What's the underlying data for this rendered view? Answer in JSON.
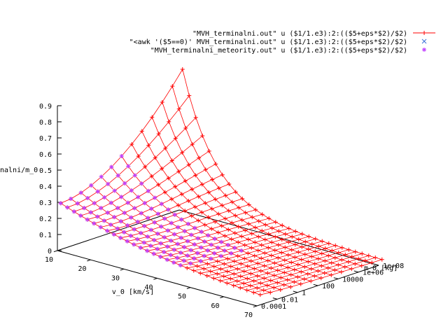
{
  "legend": [
    {
      "label": "\"MVH_terminalni.out\" u ($1/1.e3):2:(($5+eps*$2)/$2)",
      "color": "#ff0000",
      "marker": "plus"
    },
    {
      "label": "\"<awk '($5==0)' MVH_terminalni.out\" u ($1/1.e3):2:(($5+eps*$2)/$2)",
      "color": "#3a6fd8",
      "marker": "cross"
    },
    {
      "label": "\"MVH_terminalni_meteority.out\" u ($1/1.e3):2:(($5+eps*$2)/$2)",
      "color": "#c040ff",
      "marker": "star"
    }
  ],
  "chart_data": {
    "type": "surface",
    "title": "",
    "xlabel": "v_0 [km/s]",
    "ylabel": "m_0 [kg]",
    "zlabel": "nalni/m_0",
    "x_ticks": [
      "10",
      "20",
      "30",
      "40",
      "50",
      "60",
      "70"
    ],
    "y_ticks": [
      "0.0001",
      "0.01",
      "1",
      "100",
      "10000",
      "1e+06",
      "1e+08"
    ],
    "z_ticks": [
      "0",
      "0.1",
      "0.2",
      "0.3",
      "0.4",
      "0.5",
      "0.6",
      "0.7",
      "0.8",
      "0.9"
    ],
    "xlim": [
      10,
      70
    ],
    "ylim_log10": [
      -4,
      8
    ],
    "zlim": [
      0,
      0.9
    ],
    "series": [
      {
        "name": "\"MVH_terminalni.out\" u ($1/1.e3):2:(($5+eps*$2)/$2)",
        "x": [
          11,
          13,
          15,
          17,
          19,
          21,
          23,
          25,
          27,
          29,
          31,
          33,
          35,
          37,
          39,
          41,
          43,
          45,
          47,
          49,
          51,
          53,
          55,
          57,
          59,
          61,
          63,
          65,
          67,
          69,
          71
        ],
        "log10_m": [
          -4,
          -3,
          -2,
          -1,
          0,
          1,
          2,
          3,
          4,
          5,
          6,
          7,
          8
        ],
        "description": "z = f(v_0, m_0): peak about 0.9 near v_0 = 11 km/s, m_0 = 1e8 kg; decays with higher v_0 and lower m_0"
      },
      {
        "name": "\"<awk '($5==0)' MVH_terminalni.out\" u ($1/1.e3):2:(($5+eps*$2)/$2)",
        "points": []
      },
      {
        "name": "\"MVH_terminalni_meteority.out\" u ($1/1.e3):2:(($5+eps*$2)/$2)",
        "log10_m": [
          -4,
          -3,
          -2,
          -1,
          0,
          1,
          2
        ]
      }
    ]
  }
}
